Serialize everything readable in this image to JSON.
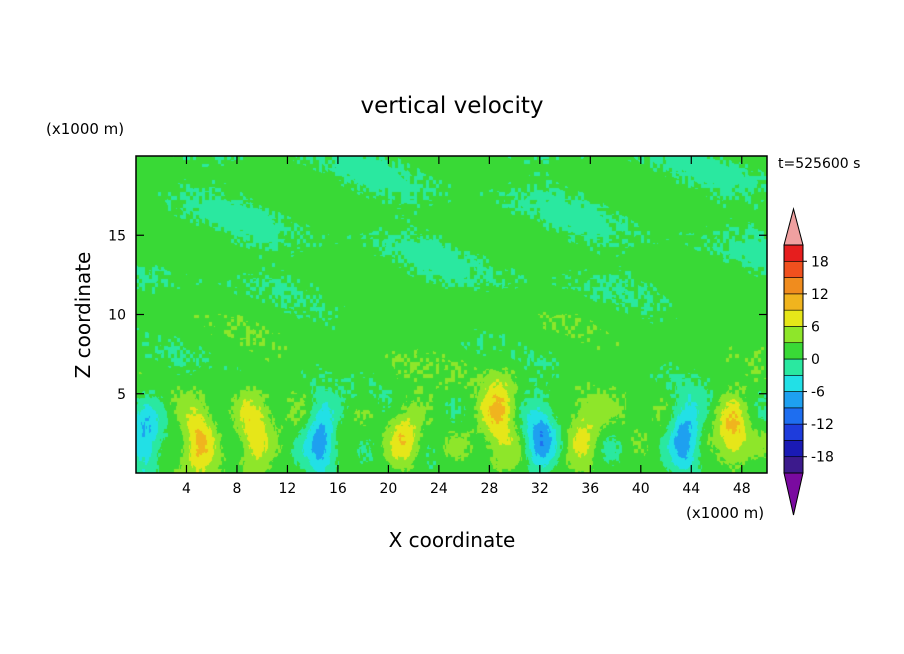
{
  "chart_data": {
    "type": "heatmap",
    "title": "vertical velocity",
    "time_label": "t=525600 s",
    "xlabel": "X coordinate",
    "ylabel": "Z coordinate",
    "x_unit": "(x1000 m)",
    "y_unit": "(x1000 m)",
    "xlim": [
      0,
      50
    ],
    "ylim": [
      0,
      20
    ],
    "x_ticks": [
      "4",
      "8",
      "12",
      "16",
      "20",
      "24",
      "28",
      "32",
      "36",
      "40",
      "44",
      "48"
    ],
    "y_ticks": [
      "5",
      "10",
      "15"
    ],
    "colorbar": {
      "labels": [
        "18",
        "12",
        "6",
        "0",
        "-6",
        "-12",
        "-18"
      ],
      "levels": [
        -21,
        -18,
        -15,
        -12,
        -9,
        -6,
        -3,
        0,
        3,
        6,
        9,
        12,
        15,
        18,
        21
      ],
      "colors": [
        "#7a0aa0",
        "#3c1a8c",
        "#1a1ab4",
        "#1e3cdc",
        "#1e6ef0",
        "#1ea0f0",
        "#22e0e6",
        "#2ae8a0",
        "#39d936",
        "#8ee62a",
        "#e6e619",
        "#f0b41e",
        "#f08c1e",
        "#f0501e",
        "#e61e1e",
        "#f0a0a0"
      ]
    },
    "field_summary": {
      "background_value": 1.5,
      "upper_layer_value": 0.5,
      "updrafts": [
        {
          "x": 5.0,
          "z": 2.2,
          "w": 8.5
        },
        {
          "x": 9.3,
          "z": 2.3,
          "w": 8.0
        },
        {
          "x": 21.3,
          "z": 2.3,
          "w": 6.5
        },
        {
          "x": 28.8,
          "z": 3.8,
          "w": 8.5
        },
        {
          "x": 35.5,
          "z": 2.5,
          "w": 6.0
        },
        {
          "x": 47.3,
          "z": 2.6,
          "w": 8.5
        }
      ],
      "downdrafts": [
        {
          "x": 0.8,
          "z": 2.0,
          "w": -9.0
        },
        {
          "x": 14.7,
          "z": 2.1,
          "w": -10.0
        },
        {
          "x": 32.0,
          "z": 2.2,
          "w": -9.0
        },
        {
          "x": 43.5,
          "z": 2.2,
          "w": -10.0
        }
      ]
    }
  }
}
